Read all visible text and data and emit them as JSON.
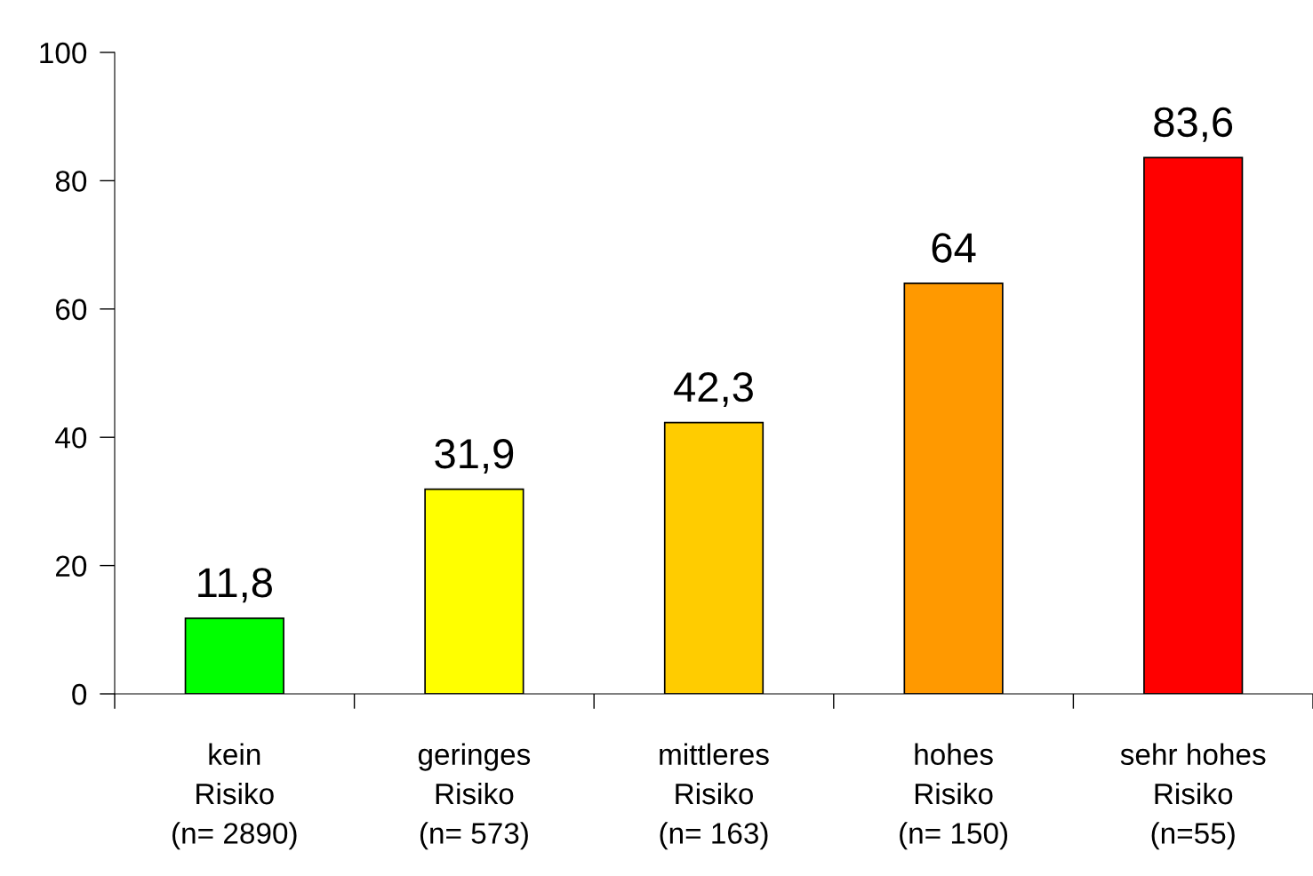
{
  "chart_data": {
    "type": "bar",
    "categories": [
      "kein\nRisiko\n(n= 2890)",
      "geringes\nRisiko\n(n= 573)",
      "mittleres\nRisiko\n(n= 163)",
      "hohes\nRisiko\n(n= 150)",
      "sehr hohes\nRisiko\n(n=55)"
    ],
    "values": [
      11.8,
      31.9,
      42.3,
      64,
      83.6
    ],
    "value_labels": [
      "11,8",
      "31,9",
      "42,3",
      "64",
      "83,6"
    ],
    "colors": [
      "#00ff00",
      "#ffff00",
      "#ffcc00",
      "#ff9900",
      "#ff0000"
    ],
    "ylim": [
      0,
      100
    ],
    "yticks": [
      0,
      20,
      40,
      60,
      80,
      100
    ],
    "grid": false,
    "legend": false
  }
}
